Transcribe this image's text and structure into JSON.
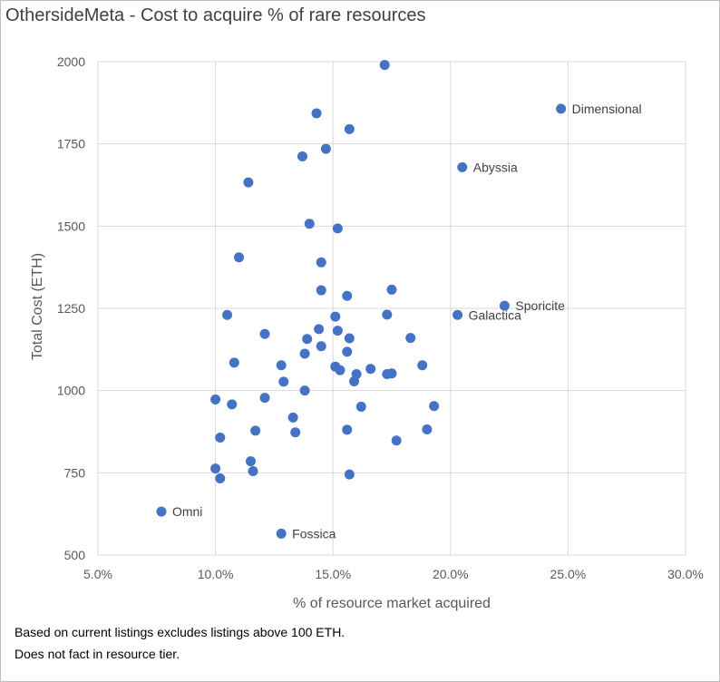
{
  "title": "OthersideMeta - Cost to acquire % of rare resources",
  "notes": [
    "Based on current listings excludes listings above 100 ETH.",
    "Does not fact in resource tier."
  ],
  "colors": {
    "point": "#4472C4",
    "grid": "#d9d9d9",
    "axis_text": "#595959"
  },
  "chart_data": {
    "type": "scatter",
    "title": "OthersideMeta - Cost to acquire % of rare resources",
    "xlabel": "% of resource market acquired",
    "ylabel": "Total Cost (ETH)",
    "xlim": [
      0.05,
      0.3
    ],
    "ylim": [
      500,
      2000
    ],
    "x_ticks": [
      0.05,
      0.1,
      0.15,
      0.2,
      0.25,
      0.3
    ],
    "x_tick_labels": [
      "5.0%",
      "10.0%",
      "15.0%",
      "20.0%",
      "25.0%",
      "30.0%"
    ],
    "y_ticks": [
      500,
      750,
      1000,
      1250,
      1500,
      1750,
      2000
    ],
    "y_tick_labels": [
      "500",
      "750",
      "1000",
      "1250",
      "1500",
      "1750",
      "2000"
    ],
    "grid": true,
    "legend": false,
    "points": [
      {
        "x": 0.172,
        "y": 1990
      },
      {
        "x": 0.143,
        "y": 1843
      },
      {
        "x": 0.157,
        "y": 1795
      },
      {
        "x": 0.147,
        "y": 1735
      },
      {
        "x": 0.137,
        "y": 1712
      },
      {
        "x": 0.114,
        "y": 1633
      },
      {
        "x": 0.14,
        "y": 1507
      },
      {
        "x": 0.152,
        "y": 1493
      },
      {
        "x": 0.11,
        "y": 1405
      },
      {
        "x": 0.145,
        "y": 1390
      },
      {
        "x": 0.145,
        "y": 1305
      },
      {
        "x": 0.175,
        "y": 1307
      },
      {
        "x": 0.156,
        "y": 1288
      },
      {
        "x": 0.105,
        "y": 1230
      },
      {
        "x": 0.173,
        "y": 1231
      },
      {
        "x": 0.151,
        "y": 1225
      },
      {
        "x": 0.144,
        "y": 1187
      },
      {
        "x": 0.152,
        "y": 1182
      },
      {
        "x": 0.121,
        "y": 1172
      },
      {
        "x": 0.139,
        "y": 1157
      },
      {
        "x": 0.157,
        "y": 1159
      },
      {
        "x": 0.183,
        "y": 1160
      },
      {
        "x": 0.145,
        "y": 1135
      },
      {
        "x": 0.138,
        "y": 1112
      },
      {
        "x": 0.156,
        "y": 1118
      },
      {
        "x": 0.108,
        "y": 1085
      },
      {
        "x": 0.128,
        "y": 1077
      },
      {
        "x": 0.151,
        "y": 1073
      },
      {
        "x": 0.153,
        "y": 1062
      },
      {
        "x": 0.166,
        "y": 1066
      },
      {
        "x": 0.188,
        "y": 1077
      },
      {
        "x": 0.16,
        "y": 1050
      },
      {
        "x": 0.173,
        "y": 1050
      },
      {
        "x": 0.175,
        "y": 1052
      },
      {
        "x": 0.129,
        "y": 1027
      },
      {
        "x": 0.159,
        "y": 1028
      },
      {
        "x": 0.138,
        "y": 1000
      },
      {
        "x": 0.1,
        "y": 973
      },
      {
        "x": 0.121,
        "y": 978
      },
      {
        "x": 0.107,
        "y": 958
      },
      {
        "x": 0.162,
        "y": 951
      },
      {
        "x": 0.193,
        "y": 953
      },
      {
        "x": 0.133,
        "y": 918
      },
      {
        "x": 0.117,
        "y": 878
      },
      {
        "x": 0.134,
        "y": 873
      },
      {
        "x": 0.156,
        "y": 881
      },
      {
        "x": 0.19,
        "y": 882
      },
      {
        "x": 0.102,
        "y": 857
      },
      {
        "x": 0.177,
        "y": 848
      },
      {
        "x": 0.115,
        "y": 785
      },
      {
        "x": 0.1,
        "y": 763
      },
      {
        "x": 0.116,
        "y": 755
      },
      {
        "x": 0.157,
        "y": 745
      },
      {
        "x": 0.102,
        "y": 733
      },
      {
        "x": 0.247,
        "y": 1857,
        "label": "Dimensional"
      },
      {
        "x": 0.205,
        "y": 1679,
        "label": "Abyssia"
      },
      {
        "x": 0.223,
        "y": 1258,
        "label": "Sporicite"
      },
      {
        "x": 0.203,
        "y": 1230,
        "label": "Galactica"
      },
      {
        "x": 0.077,
        "y": 632,
        "label": "Omni"
      },
      {
        "x": 0.128,
        "y": 565,
        "label": "Fossica"
      }
    ]
  }
}
